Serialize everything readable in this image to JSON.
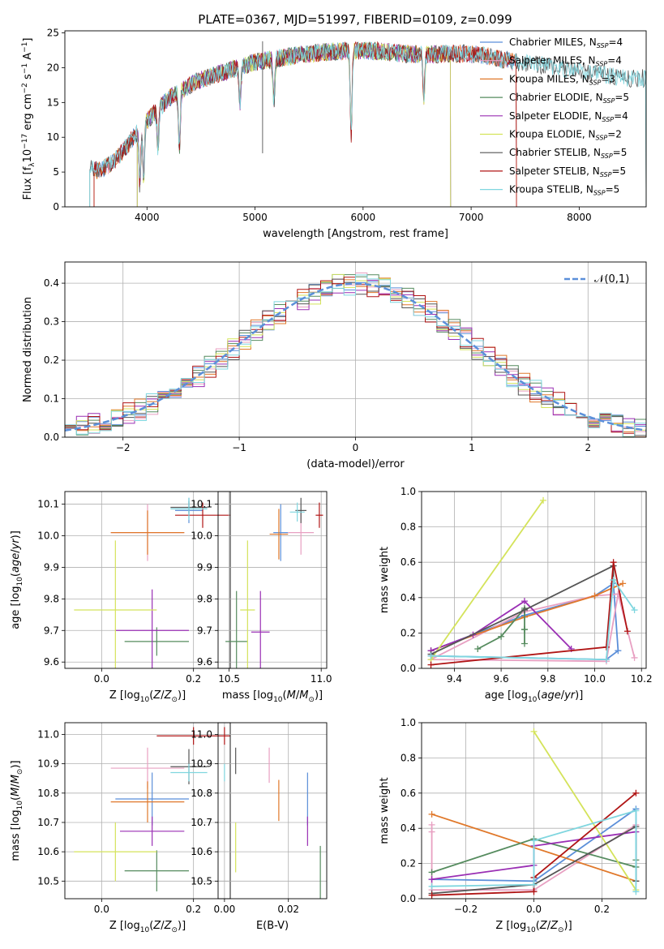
{
  "figure_title": "PLATE=0367, MJD=51997, FIBERID=0109, z=0.099",
  "models": [
    {
      "name": "Chabrier MILES",
      "nssp": 4,
      "color": "#5B8FD9"
    },
    {
      "name": "Salpeter MILES",
      "nssp": 4,
      "color": "#E8A0C2"
    },
    {
      "name": "Kroupa MILES",
      "nssp": 3,
      "color": "#E0782A"
    },
    {
      "name": "Chabrier ELODIE",
      "nssp": 5,
      "color": "#558B5E"
    },
    {
      "name": "Salpeter ELODIE",
      "nssp": 4,
      "color": "#9A2FB4"
    },
    {
      "name": "Kroupa ELODIE",
      "nssp": 2,
      "color": "#D4E35A"
    },
    {
      "name": "Chabrier STELIB",
      "nssp": 5,
      "color": "#555555"
    },
    {
      "name": "Salpeter STELIB",
      "nssp": 5,
      "color": "#B01515"
    },
    {
      "name": "Kroupa STELIB",
      "nssp": 5,
      "color": "#7FD6DF"
    }
  ],
  "chart_data": [
    {
      "id": "spectrum",
      "type": "line",
      "xlabel": "wavelength [Angstrom, rest frame]",
      "ylabel": "Flux [f_λ 10^-17 erg cm^-2 s^-1 A^-1]",
      "xlim": [
        3240,
        8620
      ],
      "ylim": [
        0,
        25.3
      ],
      "xticks": [
        4000,
        5000,
        6000,
        7000,
        8000
      ],
      "yticks": [
        0,
        5,
        10,
        15,
        20,
        25
      ],
      "continuum": [
        [
          3470,
          5.5
        ],
        [
          3550,
          5.2
        ],
        [
          3650,
          6.0
        ],
        [
          3750,
          7.5
        ],
        [
          3850,
          9.5
        ],
        [
          3950,
          11.5
        ],
        [
          4050,
          13.2
        ],
        [
          4150,
          14.8
        ],
        [
          4250,
          16.2
        ],
        [
          4350,
          17.0
        ],
        [
          4450,
          18.0
        ],
        [
          4600,
          18.8
        ],
        [
          4800,
          19.8
        ],
        [
          5000,
          20.8
        ],
        [
          5200,
          21.3
        ],
        [
          5400,
          21.8
        ],
        [
          5600,
          22.2
        ],
        [
          5800,
          22.4
        ],
        [
          6000,
          22.5
        ],
        [
          6200,
          22.3
        ],
        [
          6400,
          22.0
        ],
        [
          6600,
          21.9
        ],
        [
          6800,
          22.0
        ],
        [
          7000,
          22.0
        ],
        [
          7200,
          21.5
        ],
        [
          7400,
          20.8
        ],
        [
          7600,
          20.5
        ],
        [
          7800,
          20.0
        ],
        [
          8000,
          19.5
        ],
        [
          8200,
          19.0
        ],
        [
          8400,
          18.5
        ]
      ],
      "absorption_features": [
        [
          3934,
          8.0
        ],
        [
          3969,
          7.5
        ],
        [
          4102,
          5.5
        ],
        [
          4300,
          8.0
        ],
        [
          4861,
          5.0
        ],
        [
          5175,
          6.0
        ],
        [
          5890,
          12.0
        ],
        [
          6563,
          6.0
        ]
      ],
      "model_wavelength_ranges": [
        [
          3510,
          7420
        ],
        [
          3510,
          7420
        ],
        [
          3510,
          7420
        ],
        [
          3910,
          6810
        ],
        [
          3910,
          6810
        ],
        [
          3910,
          6810
        ],
        [
          3470,
          8620
        ],
        [
          3510,
          7420
        ],
        [
          3470,
          8620
        ]
      ],
      "observed_spikes": [
        [
          5070,
          7.7
        ],
        [
          5070,
          23.8
        ],
        [
          7480,
          20.5
        ]
      ]
    },
    {
      "id": "residual_hist",
      "type": "histogram",
      "xlabel": "(data-model)/error",
      "ylabel": "Normed distribution",
      "xlim": [
        -2.5,
        2.5
      ],
      "ylim": [
        0,
        0.455
      ],
      "xticks": [
        -2,
        -1,
        0,
        1,
        2
      ],
      "yticks": [
        0,
        0.1,
        0.2,
        0.3,
        0.4
      ],
      "bin_width": 0.1,
      "reference": {
        "label": "𝒩(0,1)",
        "mean": 0,
        "sigma": 1,
        "color": "#5B8FD9"
      }
    },
    {
      "id": "age_vs_Z",
      "type": "errorbar",
      "xlabel": "Z [log10(Z/Z⊙)]",
      "ylabel": "age [log10(age/yr)]",
      "xlim": [
        -0.08,
        0.28
      ],
      "ylim": [
        9.58,
        10.14
      ],
      "xticks": [
        0.0,
        0.2
      ],
      "yticks": [
        9.6,
        9.7,
        9.8,
        9.9,
        10.0,
        10.1
      ],
      "points": [
        {
          "x": 0.19,
          "y": 10.08,
          "xerr": 0.03,
          "yerr": 0.04
        },
        {
          "x": 0.1,
          "y": 10.01,
          "xerr": 0.08,
          "yerr": 0.09
        },
        {
          "x": 0.1,
          "y": 10.01,
          "xerr": 0.08,
          "yerr": 0.07
        },
        {
          "x": 0.12,
          "y": 9.665,
          "xerr": 0.07,
          "yerr": 0.045
        },
        {
          "x": 0.11,
          "y": 9.7,
          "xerr": 0.08,
          "yerr": 0.13
        },
        {
          "x": 0.03,
          "y": 9.765,
          "xerr": 0.09,
          "yerr": 0.22
        },
        {
          "x": 0.19,
          "y": 10.09,
          "xerr": 0.04,
          "yerr": 0.02
        },
        {
          "x": 0.22,
          "y": 10.065,
          "xerr": 0.06,
          "yerr": 0.04
        },
        {
          "x": 0.19,
          "y": 10.085,
          "xerr": 0.04,
          "yerr": 0.035
        }
      ]
    },
    {
      "id": "age_vs_mass",
      "type": "errorbar",
      "xlabel": "mass [log10(M/M⊙)]",
      "ylabel": "",
      "xlim": [
        10.44,
        11.03
      ],
      "ylim": [
        9.58,
        10.14
      ],
      "xticks": [
        10.5,
        11.0
      ],
      "yticks": [
        9.6,
        9.7,
        9.8,
        9.9,
        10.0,
        10.1
      ],
      "points": [
        {
          "x": 10.78,
          "y": 10.01,
          "xerr": 0.04,
          "yerr": 0.09
        },
        {
          "x": 10.89,
          "y": 10.01,
          "xerr": 0.07,
          "yerr": 0.07
        },
        {
          "x": 10.77,
          "y": 10.005,
          "xerr": 0.05,
          "yerr": 0.08
        },
        {
          "x": 10.54,
          "y": 9.665,
          "xerr": 0.06,
          "yerr": 0.16
        },
        {
          "x": 10.67,
          "y": 9.695,
          "xerr": 0.05,
          "yerr": 0.13
        },
        {
          "x": 10.6,
          "y": 9.765,
          "xerr": 0.04,
          "yerr": 0.22
        },
        {
          "x": 10.89,
          "y": 10.08,
          "xerr": 0.03,
          "yerr": 0.04
        },
        {
          "x": 10.99,
          "y": 10.065,
          "xerr": 0.02,
          "yerr": 0.04
        },
        {
          "x": 10.87,
          "y": 10.075,
          "xerr": 0.04,
          "yerr": 0.03
        }
      ]
    },
    {
      "id": "weight_vs_age",
      "type": "line",
      "xlabel": "age [log10(age/yr)]",
      "ylabel": "mass weight",
      "xlim": [
        9.26,
        10.22
      ],
      "ylim": [
        0,
        1.0
      ],
      "xticks": [
        9.4,
        9.6,
        9.8,
        10.0,
        10.2
      ],
      "yticks": [
        0,
        0.2,
        0.4,
        0.6,
        0.8,
        1.0
      ],
      "series": [
        {
          "x": [
            9.3,
            9.7,
            10.0,
            10.08,
            10.1,
            10.05,
            9.3
          ],
          "y": [
            0.1,
            0.3,
            0.41,
            0.48,
            0.1,
            0.05,
            0.07
          ]
        },
        {
          "x": [
            9.3,
            9.7,
            10.0,
            10.1,
            10.17,
            10.1,
            10.05,
            9.3
          ],
          "y": [
            0.05,
            0.32,
            0.41,
            0.42,
            0.06,
            0.42,
            0.04,
            0.05
          ]
        },
        {
          "x": [
            9.3,
            9.7,
            10.0,
            10.12
          ],
          "y": [
            0.1,
            0.29,
            0.41,
            0.48
          ]
        },
        {
          "x": [
            9.5,
            9.6,
            9.7,
            9.7,
            9.7,
            9.7
          ],
          "y": [
            0.11,
            0.18,
            0.34,
            0.22,
            0.14,
            0.22
          ]
        },
        {
          "x": [
            9.3,
            9.48,
            9.7,
            9.9
          ],
          "y": [
            0.1,
            0.19,
            0.38,
            0.11
          ]
        },
        {
          "x": [
            9.3,
            9.78
          ],
          "y": [
            0.05,
            0.95
          ]
        },
        {
          "x": [
            9.3,
            9.7,
            10.08,
            10.08
          ],
          "y": [
            0.08,
            0.33,
            0.58,
            0.5
          ]
        },
        {
          "x": [
            9.3,
            10.05,
            10.08,
            10.14
          ],
          "y": [
            0.02,
            0.12,
            0.6,
            0.21
          ]
        },
        {
          "x": [
            9.3,
            10.05,
            10.08,
            10.17
          ],
          "y": [
            0.07,
            0.05,
            0.5,
            0.33
          ]
        }
      ]
    },
    {
      "id": "mass_vs_Z",
      "type": "errorbar",
      "xlabel": "Z [log10(Z/Z⊙)]",
      "ylabel": "mass [log10(M/M⊙)]",
      "xlim": [
        -0.08,
        0.28
      ],
      "ylim": [
        10.44,
        11.04
      ],
      "xticks": [
        0.0,
        0.2
      ],
      "yticks": [
        10.5,
        10.6,
        10.7,
        10.8,
        10.9,
        11.0
      ],
      "points": [
        {
          "x": 0.11,
          "y": 10.78,
          "xerr": 0.08,
          "yerr": 0.09
        },
        {
          "x": 0.1,
          "y": 10.885,
          "xerr": 0.08,
          "yerr": 0.07
        },
        {
          "x": 0.1,
          "y": 10.77,
          "xerr": 0.08,
          "yerr": 0.07
        },
        {
          "x": 0.12,
          "y": 10.535,
          "xerr": 0.07,
          "yerr": 0.07
        },
        {
          "x": 0.11,
          "y": 10.67,
          "xerr": 0.07,
          "yerr": 0.05
        },
        {
          "x": 0.03,
          "y": 10.6,
          "xerr": 0.09,
          "yerr": 0.1
        },
        {
          "x": 0.19,
          "y": 10.89,
          "xerr": 0.04,
          "yerr": 0.06
        },
        {
          "x": 0.2,
          "y": 10.995,
          "xerr": 0.08,
          "yerr": 0.03
        },
        {
          "x": 0.19,
          "y": 10.87,
          "xerr": 0.04,
          "yerr": 0.03
        }
      ]
    },
    {
      "id": "mass_vs_ebv",
      "type": "errorbar",
      "xlabel": "E(B-V)",
      "ylabel": "",
      "xlim": [
        -0.002,
        0.032
      ],
      "ylim": [
        10.44,
        11.04
      ],
      "xticks": [
        0.0,
        0.02
      ],
      "yticks": [
        10.5,
        10.6,
        10.7,
        10.8,
        10.9,
        11.0
      ],
      "points": [
        {
          "x": 0.026,
          "y": 10.78,
          "xerr": 0,
          "yerr": 0.09
        },
        {
          "x": 0.014,
          "y": 10.895,
          "xerr": 0,
          "yerr": 0.06
        },
        {
          "x": 0.017,
          "y": 10.775,
          "xerr": 0,
          "yerr": 0.07
        },
        {
          "x": 0.03,
          "y": 10.5,
          "xerr": 0,
          "yerr": 0.12
        },
        {
          "x": 0.026,
          "y": 10.67,
          "xerr": 0,
          "yerr": 0.05
        },
        {
          "x": 0.0035,
          "y": 10.615,
          "xerr": 0,
          "yerr": 0.085
        },
        {
          "x": 0.0035,
          "y": 10.91,
          "xerr": 0,
          "yerr": 0.045
        },
        {
          "x": 0.0,
          "y": 10.995,
          "xerr": 0,
          "yerr": 0.03
        },
        {
          "x": 0.0,
          "y": 10.87,
          "xerr": 0,
          "yerr": 0.03
        }
      ]
    },
    {
      "id": "weight_vs_Z",
      "type": "line",
      "xlabel": "Z [log10(Z/Z⊙)]",
      "ylabel": "mass weight",
      "xlim": [
        -0.33,
        0.33
      ],
      "ylim": [
        0,
        1.0
      ],
      "xticks": [
        -0.2,
        0.0,
        0.2
      ],
      "yticks": [
        0,
        0.2,
        0.4,
        0.6,
        0.8,
        1.0
      ],
      "series": [
        {
          "x": [
            -0.3,
            0.0,
            0.3,
            0.3
          ],
          "y": [
            0.11,
            0.1,
            0.51,
            0.1
          ]
        },
        {
          "x": [
            -0.3,
            -0.3,
            -0.3,
            0.0,
            0.3
          ],
          "y": [
            0.42,
            0.38,
            0.05,
            0.05,
            0.42
          ]
        },
        {
          "x": [
            -0.3,
            0.3
          ],
          "y": [
            0.48,
            0.1
          ]
        },
        {
          "x": [
            -0.3,
            0.0,
            0.3,
            0.3
          ],
          "y": [
            0.15,
            0.34,
            0.18,
            0.22
          ]
        },
        {
          "x": [
            -0.3,
            0.0,
            0.0,
            0.3
          ],
          "y": [
            0.11,
            0.19,
            0.3,
            0.38
          ]
        },
        {
          "x": [
            0.0,
            0.3
          ],
          "y": [
            0.95,
            0.05
          ]
        },
        {
          "x": [
            -0.3,
            0.0,
            0.3,
            0.3
          ],
          "y": [
            0.03,
            0.08,
            0.41,
            0.1
          ]
        },
        {
          "x": [
            -0.3,
            0.0,
            0.0,
            0.3
          ],
          "y": [
            0.02,
            0.04,
            0.12,
            0.6
          ]
        },
        {
          "x": [
            -0.3,
            0.0,
            0.0,
            0.3,
            0.3
          ],
          "y": [
            0.07,
            0.08,
            0.33,
            0.5,
            0.04
          ]
        }
      ]
    }
  ]
}
